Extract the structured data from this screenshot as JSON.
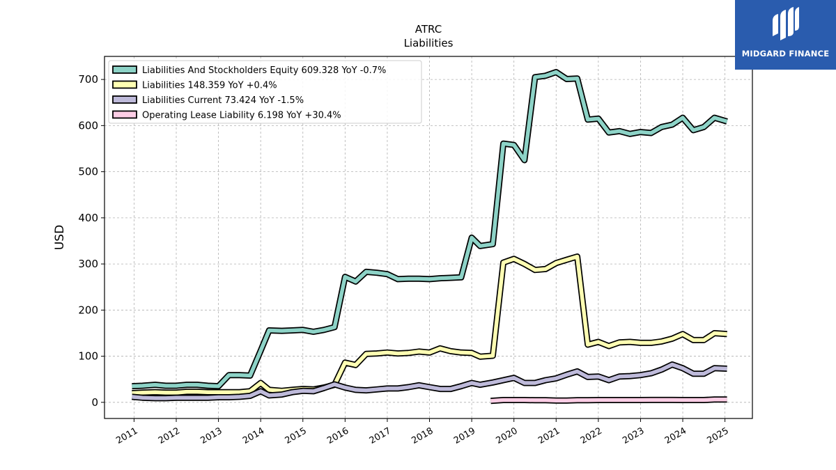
{
  "chart_data": {
    "type": "line",
    "title": "ATRC",
    "subtitle": "Liabilities",
    "ylabel": "USD",
    "xlabel": "",
    "ylim": [
      -35,
      750
    ],
    "xlim": [
      2010.3,
      2025.65
    ],
    "yticks": [
      0,
      100,
      200,
      300,
      400,
      500,
      600,
      700
    ],
    "xticks": [
      "2011",
      "2012",
      "2013",
      "2014",
      "2015",
      "2016",
      "2017",
      "2018",
      "2019",
      "2020",
      "2021",
      "2022",
      "2023",
      "2024",
      "2025"
    ],
    "grid": true,
    "legend_position": "top-left",
    "series": [
      {
        "name": "Liabilities And Stockholders Equity",
        "legend_label": "Liabilities And Stockholders Equity  609.328 YoY -0.7%",
        "color": "#8dd3c7",
        "points": [
          [
            2010.95,
            35
          ],
          [
            2011.2,
            36
          ],
          [
            2011.5,
            38
          ],
          [
            2011.75,
            36
          ],
          [
            2012.0,
            36
          ],
          [
            2012.25,
            38
          ],
          [
            2012.5,
            38
          ],
          [
            2012.75,
            36
          ],
          [
            2013.0,
            35
          ],
          [
            2013.25,
            59
          ],
          [
            2013.5,
            59
          ],
          [
            2013.75,
            58
          ],
          [
            2014.0,
            112
          ],
          [
            2014.2,
            156
          ],
          [
            2014.5,
            155
          ],
          [
            2014.75,
            156
          ],
          [
            2015.0,
            157
          ],
          [
            2015.25,
            153
          ],
          [
            2015.5,
            157
          ],
          [
            2015.75,
            163
          ],
          [
            2016.0,
            272
          ],
          [
            2016.25,
            262
          ],
          [
            2016.5,
            283
          ],
          [
            2016.75,
            281
          ],
          [
            2017.0,
            278
          ],
          [
            2017.25,
            267
          ],
          [
            2017.5,
            268
          ],
          [
            2017.75,
            268
          ],
          [
            2018.0,
            267
          ],
          [
            2018.25,
            269
          ],
          [
            2018.5,
            270
          ],
          [
            2018.75,
            271
          ],
          [
            2019.0,
            357
          ],
          [
            2019.2,
            339
          ],
          [
            2019.5,
            343
          ],
          [
            2019.75,
            561
          ],
          [
            2020.0,
            558
          ],
          [
            2020.25,
            525
          ],
          [
            2020.5,
            705
          ],
          [
            2020.75,
            708
          ],
          [
            2021.0,
            716
          ],
          [
            2021.25,
            701
          ],
          [
            2021.5,
            702
          ],
          [
            2021.75,
            613
          ],
          [
            2022.0,
            615
          ],
          [
            2022.25,
            585
          ],
          [
            2022.5,
            588
          ],
          [
            2022.75,
            582
          ],
          [
            2023.0,
            586
          ],
          [
            2023.25,
            584
          ],
          [
            2023.5,
            597
          ],
          [
            2023.75,
            602
          ],
          [
            2024.0,
            617
          ],
          [
            2024.25,
            590
          ],
          [
            2024.5,
            597
          ],
          [
            2024.75,
            617
          ],
          [
            2025.05,
            609
          ]
        ]
      },
      {
        "name": "Liabilities",
        "legend_label": "Liabilities  148.359 YoY +0.4%",
        "color": "#ffffb3",
        "points": [
          [
            2010.95,
            20
          ],
          [
            2011.2,
            21
          ],
          [
            2011.5,
            22
          ],
          [
            2011.75,
            21
          ],
          [
            2012.0,
            21
          ],
          [
            2012.25,
            23
          ],
          [
            2012.5,
            23
          ],
          [
            2012.75,
            22
          ],
          [
            2013.0,
            22
          ],
          [
            2013.25,
            22
          ],
          [
            2013.5,
            22
          ],
          [
            2013.75,
            24
          ],
          [
            2014.0,
            42
          ],
          [
            2014.2,
            27
          ],
          [
            2014.5,
            25
          ],
          [
            2014.75,
            27
          ],
          [
            2015.0,
            29
          ],
          [
            2015.25,
            28
          ],
          [
            2015.5,
            32
          ],
          [
            2015.75,
            38
          ],
          [
            2016.0,
            86
          ],
          [
            2016.25,
            81
          ],
          [
            2016.5,
            105
          ],
          [
            2016.75,
            106
          ],
          [
            2017.0,
            108
          ],
          [
            2017.25,
            106
          ],
          [
            2017.5,
            107
          ],
          [
            2017.75,
            110
          ],
          [
            2018.0,
            108
          ],
          [
            2018.25,
            117
          ],
          [
            2018.5,
            111
          ],
          [
            2018.75,
            108
          ],
          [
            2019.0,
            107
          ],
          [
            2019.2,
            99
          ],
          [
            2019.5,
            101
          ],
          [
            2019.75,
            303
          ],
          [
            2020.0,
            311
          ],
          [
            2020.25,
            300
          ],
          [
            2020.5,
            287
          ],
          [
            2020.75,
            289
          ],
          [
            2021.0,
            302
          ],
          [
            2021.25,
            309
          ],
          [
            2021.5,
            316
          ],
          [
            2021.75,
            125
          ],
          [
            2022.0,
            131
          ],
          [
            2022.25,
            122
          ],
          [
            2022.5,
            130
          ],
          [
            2022.75,
            131
          ],
          [
            2023.0,
            129
          ],
          [
            2023.25,
            129
          ],
          [
            2023.5,
            132
          ],
          [
            2023.75,
            138
          ],
          [
            2024.0,
            148
          ],
          [
            2024.25,
            135
          ],
          [
            2024.5,
            135
          ],
          [
            2024.75,
            150
          ],
          [
            2025.05,
            148
          ]
        ]
      },
      {
        "name": "Liabilities Current",
        "legend_label": "Liabilities Current  73.424 YoY -1.5%",
        "color": "#bebada",
        "points": [
          [
            2010.95,
            12
          ],
          [
            2011.2,
            10
          ],
          [
            2011.5,
            9
          ],
          [
            2011.75,
            9
          ],
          [
            2012.0,
            10
          ],
          [
            2012.25,
            10
          ],
          [
            2012.5,
            10
          ],
          [
            2012.75,
            10
          ],
          [
            2013.0,
            11
          ],
          [
            2013.25,
            11
          ],
          [
            2013.5,
            12
          ],
          [
            2013.75,
            14
          ],
          [
            2014.0,
            24
          ],
          [
            2014.2,
            15
          ],
          [
            2014.5,
            17
          ],
          [
            2014.75,
            22
          ],
          [
            2015.0,
            25
          ],
          [
            2015.25,
            24
          ],
          [
            2015.5,
            31
          ],
          [
            2015.75,
            39
          ],
          [
            2016.0,
            32
          ],
          [
            2016.25,
            27
          ],
          [
            2016.5,
            26
          ],
          [
            2016.75,
            28
          ],
          [
            2017.0,
            30
          ],
          [
            2017.25,
            30
          ],
          [
            2017.5,
            33
          ],
          [
            2017.75,
            37
          ],
          [
            2018.0,
            33
          ],
          [
            2018.25,
            29
          ],
          [
            2018.5,
            29
          ],
          [
            2018.75,
            35
          ],
          [
            2019.0,
            42
          ],
          [
            2019.2,
            38
          ],
          [
            2019.5,
            43
          ],
          [
            2019.75,
            48
          ],
          [
            2020.0,
            53
          ],
          [
            2020.25,
            42
          ],
          [
            2020.5,
            42
          ],
          [
            2020.75,
            48
          ],
          [
            2021.0,
            52
          ],
          [
            2021.25,
            60
          ],
          [
            2021.5,
            67
          ],
          [
            2021.75,
            55
          ],
          [
            2022.0,
            56
          ],
          [
            2022.25,
            48
          ],
          [
            2022.5,
            56
          ],
          [
            2022.75,
            57
          ],
          [
            2023.0,
            59
          ],
          [
            2023.25,
            63
          ],
          [
            2023.5,
            71
          ],
          [
            2023.75,
            82
          ],
          [
            2024.0,
            74
          ],
          [
            2024.25,
            62
          ],
          [
            2024.5,
            62
          ],
          [
            2024.75,
            74
          ],
          [
            2025.05,
            73
          ]
        ]
      },
      {
        "name": "Operating Lease Liability",
        "legend_label": "Operating Lease Liability  6.198 YoY +30.4%",
        "color": "#fccde5",
        "points": [
          [
            2019.45,
            3
          ],
          [
            2019.75,
            5
          ],
          [
            2020.0,
            5
          ],
          [
            2020.25,
            5
          ],
          [
            2020.5,
            4.5
          ],
          [
            2020.75,
            4.5
          ],
          [
            2021.0,
            4
          ],
          [
            2021.25,
            4
          ],
          [
            2021.5,
            4.5
          ],
          [
            2021.75,
            4.5
          ],
          [
            2022.0,
            5
          ],
          [
            2022.25,
            5
          ],
          [
            2022.5,
            5
          ],
          [
            2022.75,
            5
          ],
          [
            2023.0,
            5
          ],
          [
            2023.25,
            5.2
          ],
          [
            2023.5,
            5.2
          ],
          [
            2023.75,
            5.2
          ],
          [
            2024.0,
            5
          ],
          [
            2024.25,
            5
          ],
          [
            2024.5,
            5
          ],
          [
            2024.75,
            6
          ],
          [
            2025.05,
            6.2
          ]
        ]
      }
    ]
  },
  "logo": {
    "text": "MIDGARD FINANCE",
    "background": "#2a5cae"
  }
}
